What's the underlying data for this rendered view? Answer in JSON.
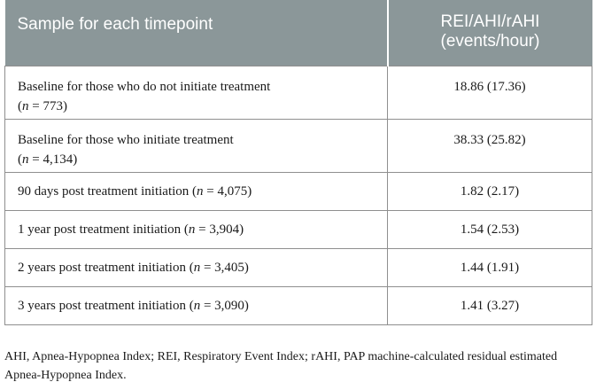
{
  "table": {
    "header": {
      "col1": "Sample for each timepoint",
      "col2_line1": "REI/AHI/rAHI",
      "col2_line2": "(events/hour)"
    },
    "rows": [
      {
        "label_line1": "Baseline for those who do not initiate treatment",
        "n_prefix": "(",
        "n_var": "n",
        "n_eq": " = 773)",
        "label_inline": "",
        "value": "18.86 (17.36)"
      },
      {
        "label_line1": "Baseline for those who initiate treatment",
        "n_prefix": "(",
        "n_var": "n",
        "n_eq": " = 4,134)",
        "label_inline": "",
        "value": "38.33 (25.82)"
      },
      {
        "label_line1": "90 days post treatment initiation (",
        "n_var": "n",
        "n_eq": " = 4,075)",
        "value": "1.82 (2.17)"
      },
      {
        "label_line1": "1 year post treatment initiation (",
        "n_var": "n",
        "n_eq": " = 3,904)",
        "value": "1.54 (2.53)"
      },
      {
        "label_line1": "2 years post treatment initiation (",
        "n_var": "n",
        "n_eq": " = 3,405)",
        "value": "1.44 (1.91)"
      },
      {
        "label_line1": "3 years post treatment initiation (",
        "n_var": "n",
        "n_eq": " = 3,090)",
        "value": "1.41 (3.27)"
      }
    ]
  },
  "footnote": "AHI, Apnea-Hypopnea Index; REI, Respiratory Event Index; rAHI, PAP machine-calculated residual estimated Apnea-Hypopnea Index."
}
